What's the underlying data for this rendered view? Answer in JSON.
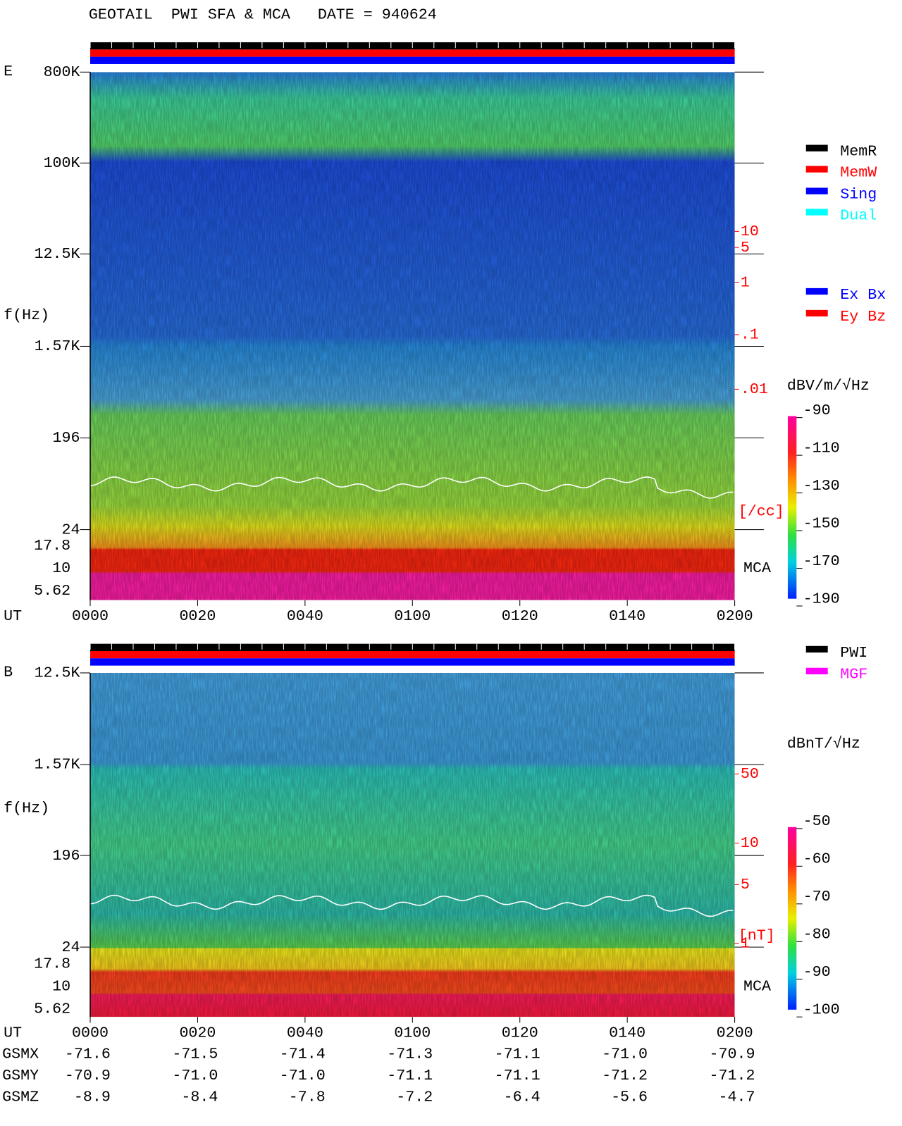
{
  "header": {
    "title": "GEOTAIL  PWI SFA & MCA   DATE = 940624"
  },
  "panels": [
    {
      "label": "E",
      "y_axis_label": "f(Hz)",
      "freq_ticks": [
        "800K",
        "100K",
        "12.5K",
        "1.57K",
        "196",
        "24"
      ],
      "mca_ticks": [
        "17.8",
        "10",
        "5.62"
      ],
      "density_ticks": [
        "10",
        "5",
        "1",
        ".1",
        ".01"
      ],
      "density_unit": "[/cc]",
      "mca_label": "MCA",
      "x_axis_label": "UT",
      "time_ticks": [
        "0000",
        "0020",
        "0040",
        "0100",
        "0120",
        "0140",
        "0200"
      ],
      "legend": [
        {
          "label": "MemR",
          "color": "#000000"
        },
        {
          "label": "MemW",
          "color": "#ff0000"
        },
        {
          "label": "Sing",
          "color": "#0000ff"
        },
        {
          "label": "Dual",
          "color": "#00ffff"
        }
      ],
      "legend2": [
        {
          "label": "Ex Bx",
          "color": "#0000ff"
        },
        {
          "label": "Ey Bz",
          "color": "#ff0000"
        }
      ],
      "colorbar": {
        "unit": "dBV/m/√Hz",
        "ticks": [
          "-90",
          "-110",
          "-130",
          "-150",
          "-170",
          "-190"
        ]
      }
    },
    {
      "label": "B",
      "y_axis_label": "f(Hz)",
      "freq_ticks": [
        "12.5K",
        "1.57K",
        "196",
        "24"
      ],
      "mca_ticks": [
        "17.8",
        "10",
        "5.62"
      ],
      "density_ticks": [
        "50",
        "10",
        "5",
        "1"
      ],
      "density_unit": "[nT]",
      "mca_label": "MCA",
      "x_axis_label": "UT",
      "time_ticks": [
        "0000",
        "0020",
        "0040",
        "0100",
        "0120",
        "0140",
        "0200"
      ],
      "legend": [
        {
          "label": "PWI",
          "color": "#000000"
        },
        {
          "label": "MGF",
          "color": "#ff00ff"
        }
      ],
      "colorbar": {
        "unit": "dBnT/√Hz",
        "ticks": [
          "-50",
          "-60",
          "-70",
          "-80",
          "-90",
          "-100"
        ]
      }
    }
  ],
  "orbit": {
    "rows": [
      {
        "label": "GSMX",
        "values": [
          "-71.6",
          "-71.5",
          "-71.4",
          "-71.3",
          "-71.1",
          "-71.0",
          "-70.9"
        ]
      },
      {
        "label": "GSMY",
        "values": [
          "-70.9",
          "-71.0",
          "-71.0",
          "-71.1",
          "-71.1",
          "-71.2",
          "-71.2"
        ]
      },
      {
        "label": "GSMZ",
        "values": [
          "-8.9",
          "-8.4",
          "-7.8",
          "-7.2",
          "-6.4",
          "-5.6",
          "-4.7"
        ]
      }
    ]
  }
}
